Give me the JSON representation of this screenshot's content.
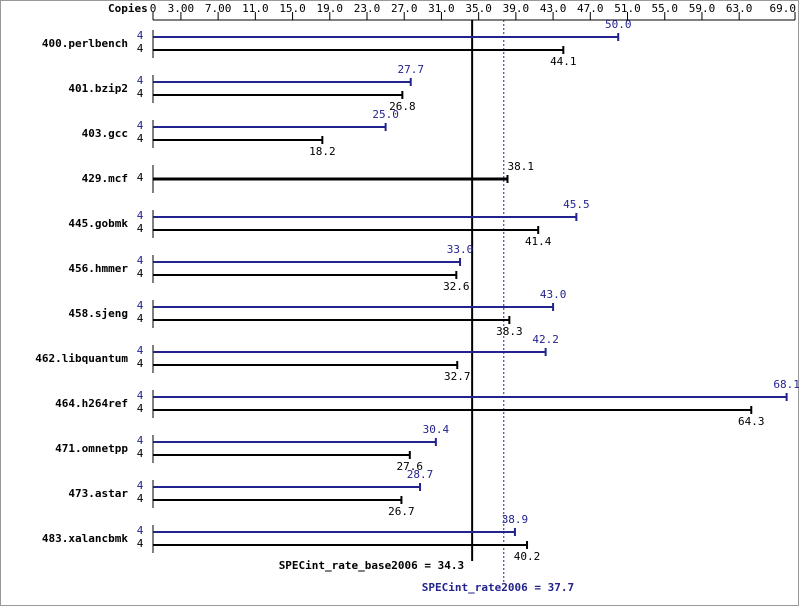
{
  "chart_data": {
    "type": "bar",
    "orientation": "horizontal",
    "x_axis_label": "Copies",
    "categories": [
      "400.perlbench",
      "401.bzip2",
      "403.gcc",
      "429.mcf",
      "445.gobmk",
      "456.hmmer",
      "458.sjeng",
      "462.libquantum",
      "464.h264ref",
      "471.omnetpp",
      "473.astar",
      "483.xalancbmk"
    ],
    "series": [
      {
        "color": "#23238e",
        "values": [
          50.0,
          27.7,
          25.0,
          null,
          45.5,
          33.0,
          43.0,
          42.2,
          68.1,
          30.4,
          28.7,
          38.9
        ],
        "value_labels": [
          "50.0",
          "27.7",
          "25.0",
          null,
          "45.5",
          "33.0",
          "43.0",
          "42.2",
          "68.1",
          "30.4",
          "28.7",
          "38.9"
        ],
        "copies": [
          4,
          4,
          4,
          null,
          4,
          4,
          4,
          4,
          4,
          4,
          4,
          4
        ]
      },
      {
        "color": "#000000",
        "values": [
          44.1,
          26.8,
          18.2,
          38.1,
          41.4,
          32.6,
          38.3,
          32.7,
          64.3,
          27.6,
          26.7,
          40.2
        ],
        "copies": [
          4,
          4,
          4,
          4,
          4,
          4,
          4,
          4,
          4,
          4,
          4,
          4
        ]
      }
    ],
    "xlim": [
      0,
      69
    ],
    "xticks": [
      0,
      {
        "value": 3,
        "label": "3.00"
      },
      {
        "value": 7,
        "label": "7.00"
      },
      {
        "value": 11,
        "label": "11.0"
      },
      {
        "value": 15,
        "label": "15.0"
      },
      {
        "value": 19,
        "label": "19.0"
      },
      {
        "value": 23,
        "label": "23.0"
      },
      {
        "value": 27,
        "label": "27.0"
      },
      {
        "value": 31,
        "label": "31.0"
      },
      {
        "value": 35,
        "label": "35.0"
      },
      {
        "value": 39,
        "label": "39.0"
      },
      {
        "value": 43,
        "label": "43.0"
      },
      {
        "value": 47,
        "label": "47.0"
      },
      {
        "value": 51,
        "label": "51.0"
      },
      {
        "value": 55,
        "label": "55.0"
      },
      {
        "value": 59,
        "label": "59.0"
      },
      {
        "value": 63,
        "label": "63.0"
      },
      {
        "value": 69,
        "label": "69.0"
      }
    ],
    "reference_lines": [
      {
        "label": "SPECint_rate_base2006 = 34.3",
        "value": 34.3,
        "color": "#000000",
        "style": "solid"
      },
      {
        "label": "SPECint_rate2006 = 37.7",
        "value": 37.7,
        "color": "#23238e",
        "style": "dotted"
      }
    ]
  }
}
